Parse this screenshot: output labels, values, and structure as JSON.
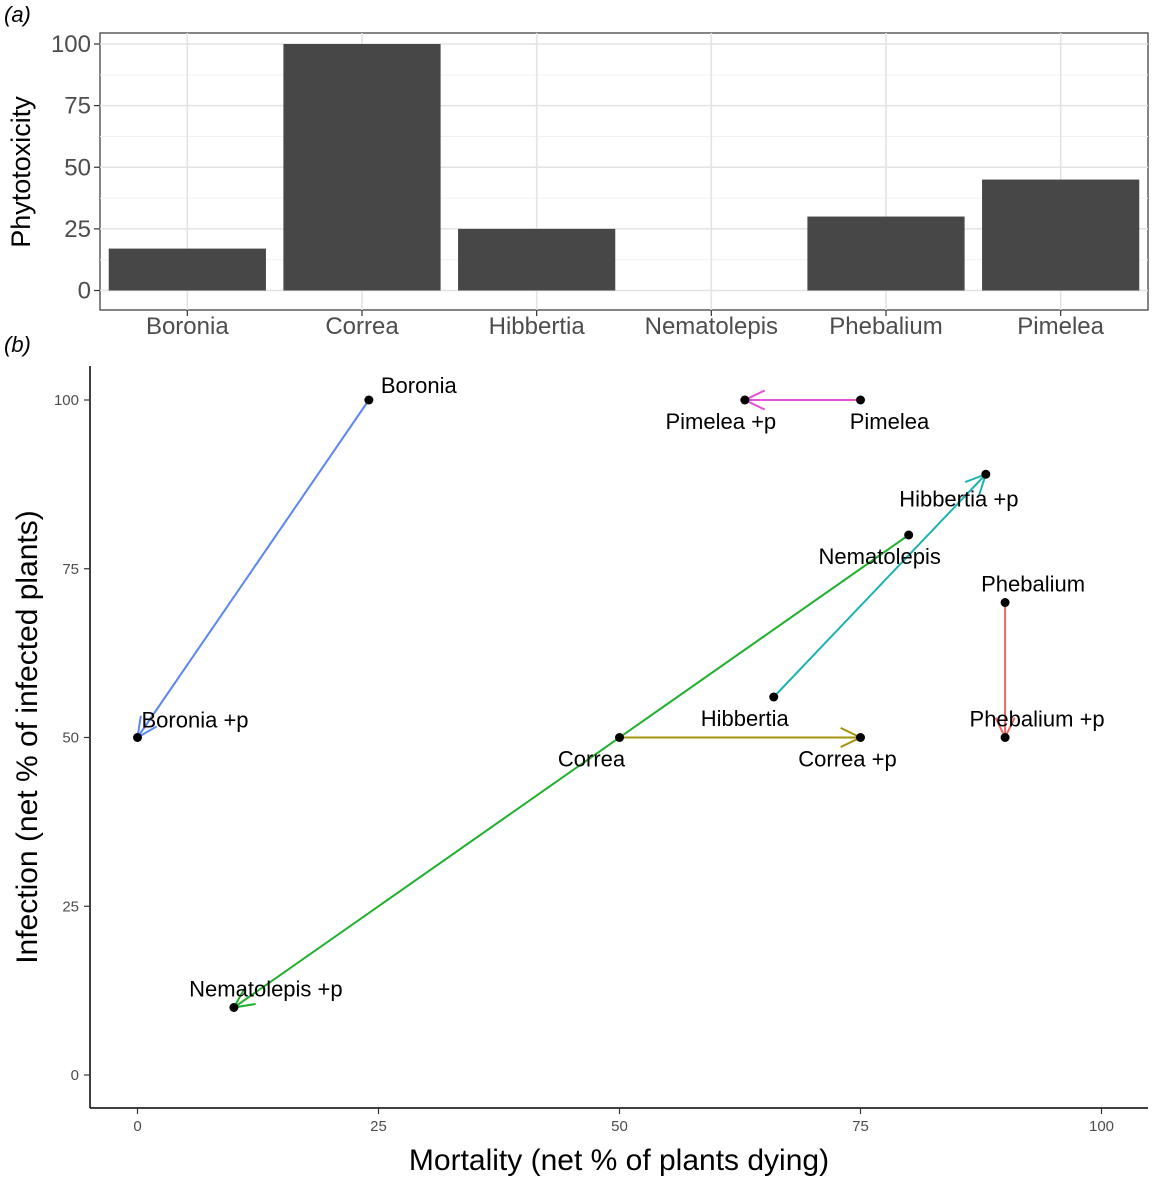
{
  "chart_data": [
    {
      "panel": "(a)",
      "type": "bar",
      "title": "",
      "xlabel": "",
      "ylabel": "Phytotoxicity",
      "categories": [
        "Boronia",
        "Correa",
        "Hibbertia",
        "Nematolepis",
        "Phebalium",
        "Pimelea"
      ],
      "values": [
        17,
        100,
        25,
        0,
        30,
        45
      ],
      "ylim": [
        0,
        100
      ],
      "yticks": [
        0,
        25,
        50,
        75,
        100
      ],
      "grid": true,
      "bar_color": "#474747"
    },
    {
      "panel": "(b)",
      "type": "scatter",
      "title": "",
      "xlabel": "Mortality (net % of plants dying)",
      "ylabel": "Infection (net % of infected plants)",
      "xlim": [
        0,
        100
      ],
      "ylim": [
        0,
        100
      ],
      "xticks": [
        0,
        25,
        50,
        75,
        100
      ],
      "yticks": [
        0,
        25,
        50,
        75,
        100
      ],
      "grid": false,
      "series": [
        {
          "name": "Boronia",
          "color": "#5B87F0",
          "from": {
            "label": "Boronia",
            "x": 24,
            "y": 100
          },
          "to": {
            "label": "Boronia +p",
            "x": 0,
            "y": 50
          }
        },
        {
          "name": "Correa",
          "color": "#A3950E",
          "from": {
            "label": "Correa",
            "x": 50,
            "y": 50
          },
          "to": {
            "label": "Correa +p",
            "x": 75,
            "y": 50
          }
        },
        {
          "name": "Hibbertia",
          "color": "#1DB2B2",
          "from": {
            "label": "Hibbertia",
            "x": 66,
            "y": 56
          },
          "to": {
            "label": "Hibbertia +p",
            "x": 88,
            "y": 89
          }
        },
        {
          "name": "Nematolepis",
          "color": "#1FB02C",
          "from": {
            "label": "Nematolepis",
            "x": 80,
            "y": 80
          },
          "to": {
            "label": "Nematolepis +p",
            "x": 10,
            "y": 10
          }
        },
        {
          "name": "Phebalium",
          "color": "#EA6A62",
          "from": {
            "label": "Phebalium",
            "x": 90,
            "y": 70
          },
          "to": {
            "label": "Phebalium +p",
            "x": 90,
            "y": 50
          }
        },
        {
          "name": "Pimelea",
          "color": "#E850D9",
          "from": {
            "label": "Pimelea",
            "x": 75,
            "y": 100
          },
          "to": {
            "label": "Pimelea +p",
            "x": 63,
            "y": 100
          }
        }
      ]
    }
  ]
}
